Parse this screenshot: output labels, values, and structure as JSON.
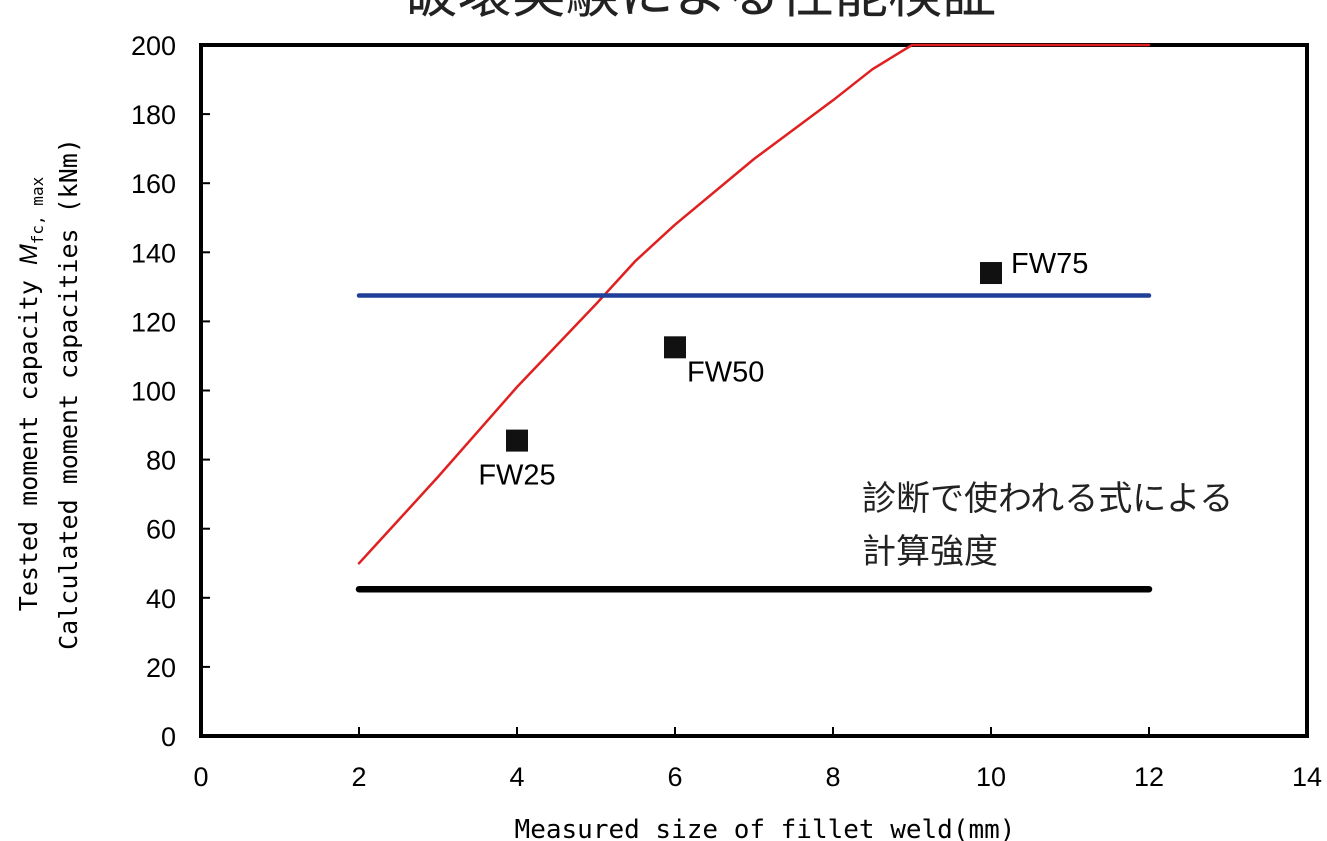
{
  "chart_data": {
    "type": "scatter",
    "title": "破壊実験による性能検証",
    "xlabel": "Measured size of fillet weld(mm)",
    "ylabel": {
      "line1_prefix": "Tested moment capacity ",
      "symbol": "M",
      "subscript": "fc, max",
      "line2": "Calculated moment capacities (kNm)"
    },
    "xlim": [
      0,
      14
    ],
    "ylim": [
      0,
      200
    ],
    "x_ticks": [
      "0",
      "2",
      "4",
      "6",
      "8",
      "10",
      "12",
      "14"
    ],
    "y_ticks": [
      "0",
      "20",
      "40",
      "60",
      "80",
      "100",
      "120",
      "140",
      "160",
      "180",
      "200"
    ],
    "grid": false,
    "points": [
      {
        "label": "FW25",
        "x": 4,
        "y": 85.5,
        "label_pos": "below"
      },
      {
        "label": "FW50",
        "x": 6,
        "y": 112.5,
        "label_pos": "below-right"
      },
      {
        "label": "FW75",
        "x": 10,
        "y": 134,
        "label_pos": "right"
      }
    ],
    "series": [
      {
        "color": "#e02020",
        "x": [
          2,
          3,
          4,
          5,
          5.5,
          6,
          7,
          8,
          8.5,
          9,
          12
        ],
        "y": [
          50,
          75,
          101,
          125,
          137.5,
          148,
          167,
          184,
          193,
          200,
          200
        ]
      },
      {
        "color": "#1f3f99",
        "x": [
          2,
          12
        ],
        "y": [
          127.5,
          127.5
        ]
      },
      {
        "color": "#000000",
        "x": [
          2,
          12
        ],
        "y": [
          42.5,
          42.5
        ]
      }
    ],
    "annotation": [
      "診断で使われる式による",
      "計算強度"
    ]
  }
}
